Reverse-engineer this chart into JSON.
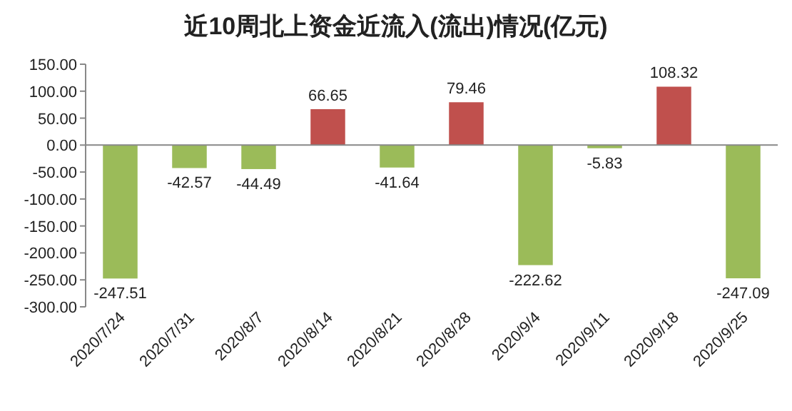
{
  "chart_data": {
    "type": "bar",
    "title": "近10周北上资金近流入(流出)情况(亿元)",
    "categories": [
      "2020/7/24",
      "2020/7/31",
      "2020/8/7",
      "2020/8/14",
      "2020/8/21",
      "2020/8/28",
      "2020/9/4",
      "2020/9/11",
      "2020/9/18",
      "2020/9/25"
    ],
    "values": [
      -247.51,
      -42.57,
      -44.49,
      66.65,
      -41.64,
      79.46,
      -222.62,
      -5.83,
      108.32,
      -247.09
    ],
    "colors": [
      "#9bbb59",
      "#9bbb59",
      "#9bbb59",
      "#c0504d",
      "#9bbb59",
      "#c0504d",
      "#9bbb59",
      "#9bbb59",
      "#c0504d",
      "#9bbb59"
    ],
    "ylim": [
      -300,
      150
    ],
    "yticks": [
      {
        "value": 150,
        "label": "150.00"
      },
      {
        "value": 100,
        "label": "100.00"
      },
      {
        "value": 50,
        "label": "50.00"
      },
      {
        "value": 0,
        "label": "0.00"
      },
      {
        "value": -50,
        "label": "-50.00"
      },
      {
        "value": -100,
        "label": "-100.00"
      },
      {
        "value": -150,
        "label": "-150.00"
      },
      {
        "value": -200,
        "label": "-200.00"
      },
      {
        "value": -250,
        "label": "-250.00"
      },
      {
        "value": -300,
        "label": "-300.00"
      }
    ],
    "data_labels": true
  }
}
